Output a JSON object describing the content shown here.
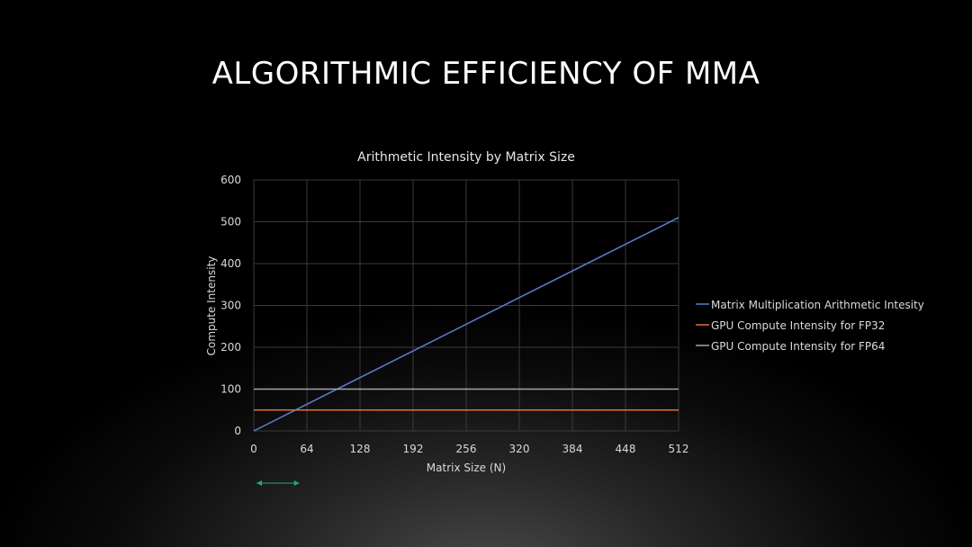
{
  "slide": {
    "title": "ALGORITHMIC EFFICIENCY OF MMA"
  },
  "colors": {
    "background": "#000000",
    "series_blue": "#5a7fd0",
    "series_orange": "#e0703a",
    "series_gray": "#a6a6a6",
    "arrow_green": "#2aa57a",
    "grid": "#3a3a3a"
  },
  "chart_data": {
    "type": "line",
    "title": "Arithmetic Intensity by Matrix Size",
    "xlabel": "Matrix Size (N)",
    "ylabel": "Compute Intensity",
    "xlim": [
      0,
      512
    ],
    "ylim": [
      0,
      600
    ],
    "xticks": [
      0,
      64,
      128,
      192,
      256,
      320,
      384,
      448,
      512
    ],
    "yticks": [
      0,
      100,
      200,
      300,
      400,
      500,
      600
    ],
    "grid": true,
    "legend_position": "right",
    "series": [
      {
        "name": "Matrix Multiplication Arithmetic Intesity",
        "color": "#5a7fd0",
        "x": [
          0,
          512
        ],
        "y": [
          0,
          510
        ]
      },
      {
        "name": "GPU Compute Intensity for FP32",
        "color": "#e0703a",
        "x": [
          0,
          512
        ],
        "y": [
          50,
          50
        ]
      },
      {
        "name": "GPU Compute Intensity for FP64",
        "color": "#a6a6a6",
        "x": [
          0,
          512
        ],
        "y": [
          100,
          100
        ]
      }
    ],
    "annotations": [
      {
        "type": "double-arrow",
        "color": "#2aa57a",
        "x_range": [
          0,
          55
        ]
      }
    ]
  }
}
